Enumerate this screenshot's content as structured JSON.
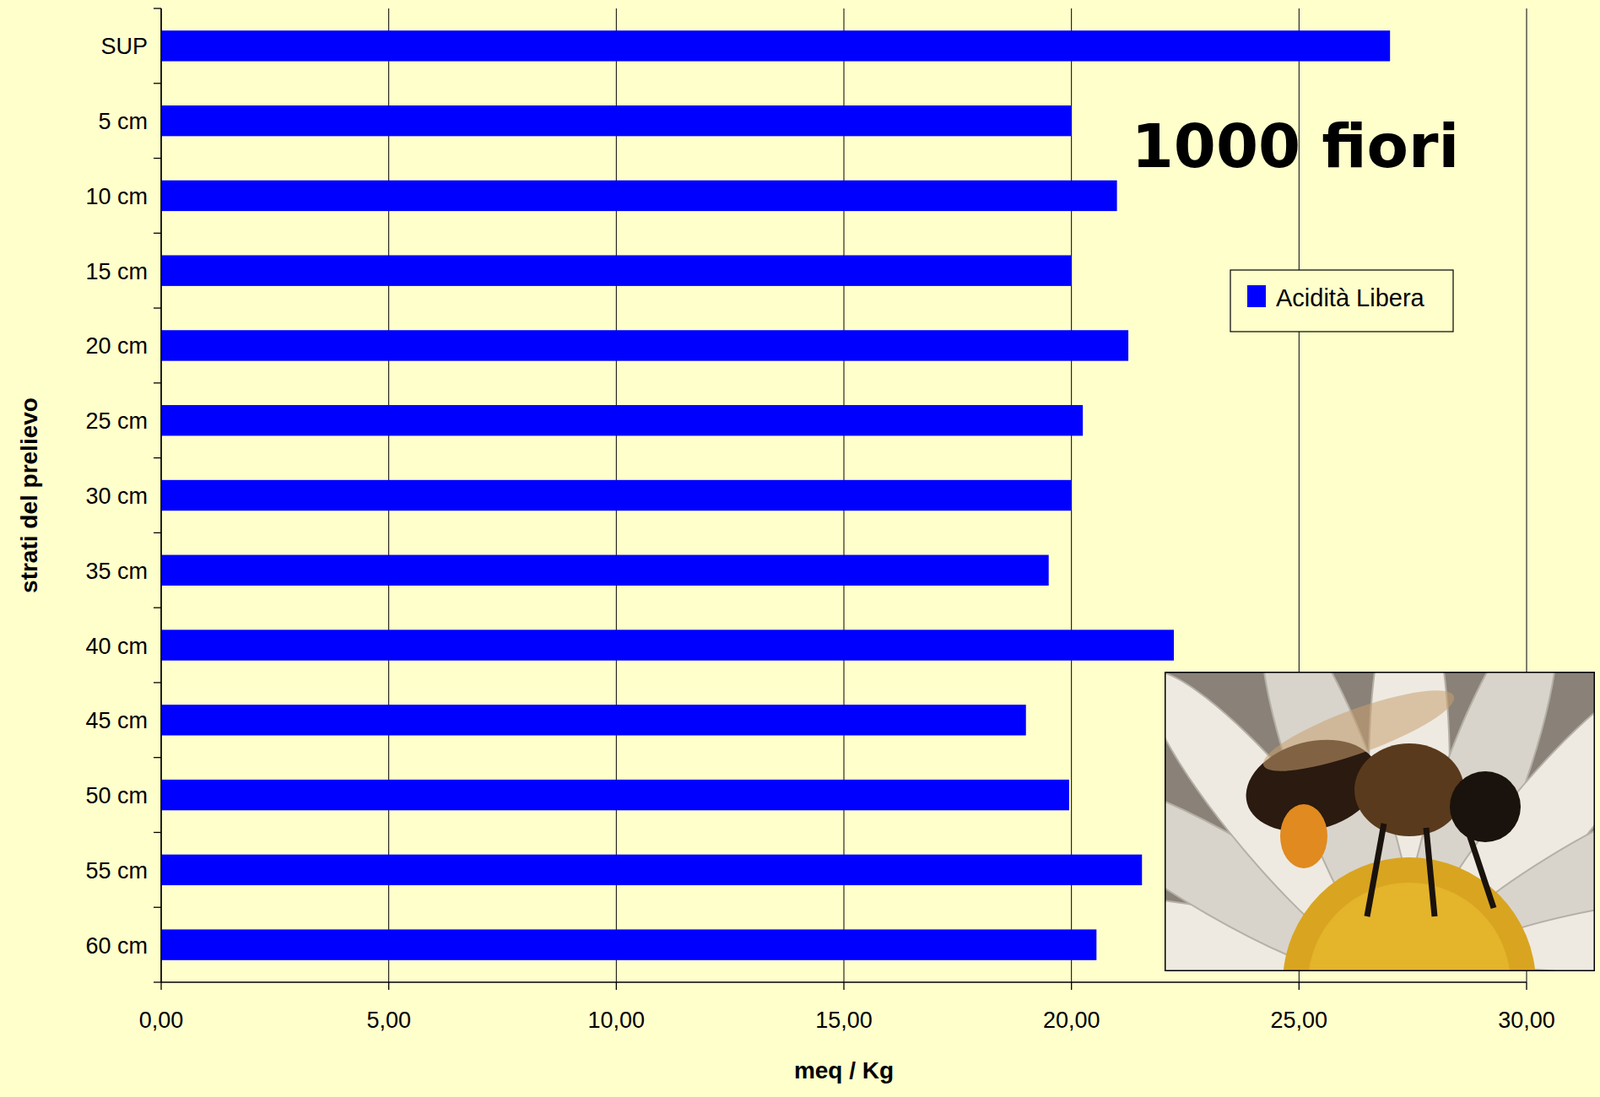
{
  "chart_data": {
    "type": "bar",
    "orientation": "horizontal",
    "title": "1000 fiori",
    "xlabel": "meq / Kg",
    "ylabel": "strati del prelievo",
    "categories": [
      "SUP",
      "5 cm",
      "10 cm",
      "15 cm",
      "20 cm",
      "25 cm",
      "30 cm",
      "35 cm",
      "40 cm",
      "45 cm",
      "50 cm",
      "55 cm",
      "60 cm"
    ],
    "series": [
      {
        "name": "Acidità Libera",
        "color": "#0000ff",
        "values": [
          27.0,
          20.0,
          21.0,
          20.0,
          21.25,
          20.25,
          20.0,
          19.5,
          22.25,
          19.0,
          19.95,
          21.55,
          20.55
        ]
      }
    ],
    "xlim": [
      0,
      30
    ],
    "xticks": [
      {
        "value": 0,
        "label": "0,00"
      },
      {
        "value": 5,
        "label": "5,00"
      },
      {
        "value": 10,
        "label": "10,00"
      },
      {
        "value": 15,
        "label": "15,00"
      },
      {
        "value": 20,
        "label": "20,00"
      },
      {
        "value": 25,
        "label": "25,00"
      },
      {
        "value": 30,
        "label": "30,00"
      }
    ],
    "grid": true,
    "legend": "upper right"
  }
}
